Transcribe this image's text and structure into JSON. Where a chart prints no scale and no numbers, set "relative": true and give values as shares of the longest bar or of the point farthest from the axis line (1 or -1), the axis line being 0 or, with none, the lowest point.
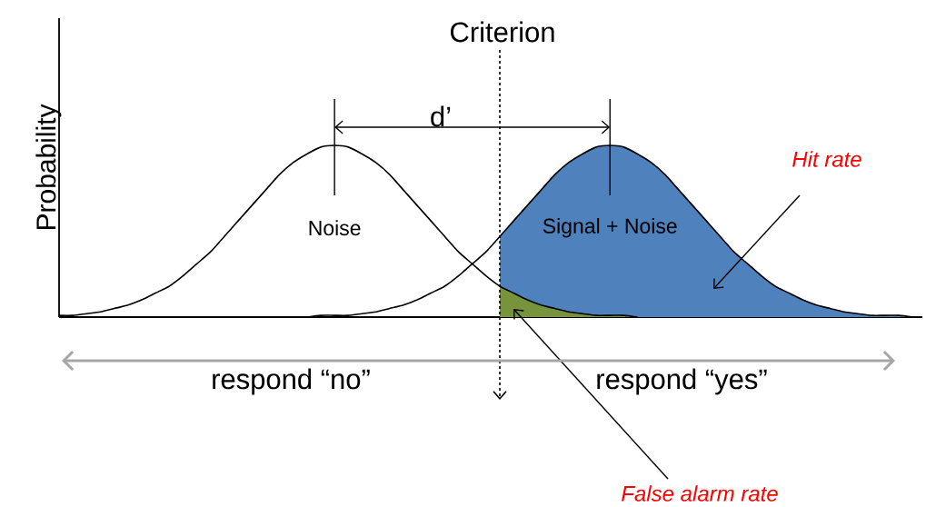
{
  "chart_data": {
    "type": "line",
    "relative": true,
    "ylabel": "Probability",
    "categories": [
      null,
      null,
      null,
      null,
      null,
      null,
      null,
      null,
      null,
      null,
      null,
      null,
      null,
      null,
      null,
      null,
      null,
      null,
      null,
      null,
      null,
      null,
      null,
      null,
      null,
      null,
      null,
      null,
      null,
      null,
      null,
      null,
      null,
      null,
      null,
      null,
      null,
      null,
      null,
      null,
      null,
      null,
      null,
      null,
      null,
      null,
      null,
      null,
      null,
      null,
      null,
      null,
      null,
      null,
      null,
      null,
      null,
      null,
      null,
      null,
      null,
      null,
      null
    ],
    "series": [
      {
        "type": "area",
        "color": "#4f81bd",
        "values": [
          null,
          null,
          null,
          null,
          null,
          null,
          null,
          null,
          null,
          null,
          null,
          null,
          null,
          null,
          null,
          null,
          null,
          null,
          null,
          null,
          null,
          null,
          null,
          null,
          null,
          null,
          null,
          null,
          null,
          null,
          null,
          null,
          0.47,
          0.56,
          0.65,
          0.74,
          0.83,
          0.9,
          0.95,
          0.99,
          1,
          0.99,
          0.95,
          0.9,
          0.83,
          0.74,
          0.65,
          0.56,
          0.47,
          0.38,
          0.31,
          0.24,
          0.18,
          0.14,
          0.1,
          0.07,
          0.05,
          0.03,
          0.02,
          0.01,
          0.01,
          0.01,
          0
        ]
      },
      {
        "type": "area",
        "color": "#77933c",
        "values": [
          null,
          null,
          null,
          null,
          null,
          null,
          null,
          null,
          null,
          null,
          null,
          null,
          null,
          null,
          null,
          null,
          null,
          null,
          null,
          null,
          null,
          null,
          null,
          null,
          null,
          null,
          null,
          null,
          null,
          null,
          null,
          null,
          0.18,
          0.14,
          0.1,
          0.07,
          0.05,
          0.03,
          0.02,
          0.01,
          0.01,
          0.01,
          0,
          null,
          null,
          null,
          null,
          null,
          null,
          null,
          null,
          null,
          null,
          null,
          null,
          null,
          null,
          null,
          null,
          null,
          null,
          null,
          null
        ]
      },
      {
        "name": "Noise",
        "color": "#000000",
        "values": [
          0.01,
          0.01,
          0.02,
          0.03,
          0.05,
          0.07,
          0.1,
          0.14,
          0.18,
          0.24,
          0.31,
          0.38,
          0.47,
          0.56,
          0.65,
          0.74,
          0.83,
          0.9,
          0.95,
          0.99,
          1,
          0.99,
          0.95,
          0.9,
          0.83,
          0.74,
          0.65,
          0.56,
          0.47,
          0.38,
          0.31,
          0.24,
          0.18,
          0.14,
          0.1,
          0.07,
          0.05,
          0.03,
          0.02,
          0.01,
          0.01,
          0.01,
          0,
          null,
          null,
          null,
          null,
          null,
          null,
          null,
          null,
          null,
          null,
          null,
          null,
          null,
          null,
          null,
          null,
          null,
          null,
          null,
          null
        ]
      },
      {
        "name": "Signal + Noise",
        "color": "#000000",
        "values": [
          null,
          null,
          null,
          null,
          null,
          null,
          null,
          null,
          null,
          null,
          null,
          null,
          null,
          null,
          null,
          null,
          null,
          null,
          0,
          0.01,
          0.01,
          0.01,
          0.02,
          0.03,
          0.05,
          0.07,
          0.1,
          0.14,
          0.18,
          0.24,
          0.31,
          0.38,
          0.47,
          0.56,
          0.65,
          0.74,
          0.83,
          0.9,
          0.95,
          0.99,
          1,
          0.99,
          0.95,
          0.9,
          0.83,
          0.74,
          0.65,
          0.56,
          0.47,
          0.38,
          0.31,
          0.24,
          0.18,
          0.14,
          0.1,
          0.07,
          0.05,
          0.03,
          0.02,
          0.01,
          0.01,
          0.01,
          0
        ]
      }
    ],
    "annotations": [
      "Criterion",
      "d’",
      "Hit rate",
      "False alarm rate",
      "respond “no”",
      "respond “yes”"
    ]
  }
}
